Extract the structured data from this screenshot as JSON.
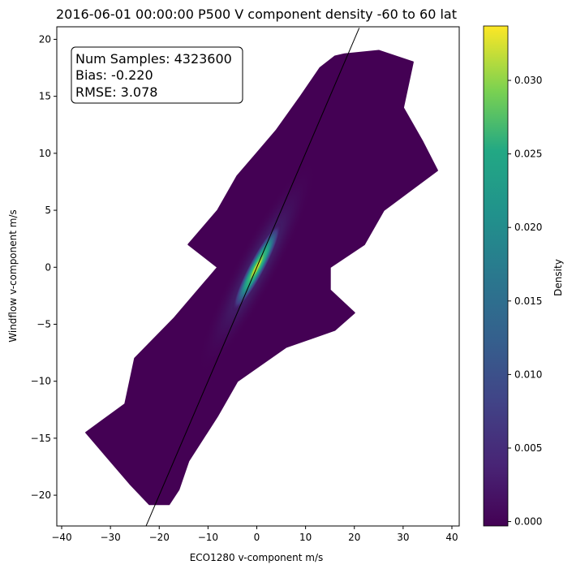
{
  "chart_data": {
    "type": "scatter",
    "title": "2016-06-01 00:00:00 P500 V component density -60 to 60 lat",
    "xlabel": "ECO1280 v-component m/s",
    "ylabel": "Windflow v-component m/s",
    "xlim": [
      -41,
      41.5
    ],
    "ylim": [
      -22.7,
      21.1
    ],
    "x_ticks": [
      -40,
      -30,
      -20,
      -10,
      0,
      10,
      20,
      30,
      40
    ],
    "y_ticks": [
      -20,
      -15,
      -10,
      -5,
      0,
      5,
      10,
      15,
      20
    ],
    "grid": false,
    "density_envelope": {
      "left": [
        [
          -22,
          -20.8
        ],
        [
          -26,
          -19
        ],
        [
          -35,
          -14.5
        ],
        [
          -27,
          -12
        ],
        [
          -25,
          -8
        ],
        [
          -17,
          -4.5
        ],
        [
          -12,
          -2
        ],
        [
          -8,
          0
        ],
        [
          -14,
          2
        ],
        [
          -8,
          5
        ],
        [
          -4,
          8
        ],
        [
          0,
          10
        ],
        [
          4,
          12
        ],
        [
          9,
          15
        ],
        [
          13,
          17.5
        ],
        [
          16,
          18.5
        ]
      ],
      "right": [
        [
          18,
          18.7
        ],
        [
          25,
          19
        ],
        [
          32,
          18
        ],
        [
          30,
          14
        ],
        [
          34,
          11
        ],
        [
          37,
          8.5
        ],
        [
          26,
          5
        ],
        [
          22,
          2
        ],
        [
          15,
          0
        ],
        [
          15,
          -2
        ],
        [
          20,
          -4
        ],
        [
          16,
          -5.5
        ],
        [
          6,
          -7
        ],
        [
          -4,
          -10
        ],
        [
          -8,
          -13
        ],
        [
          -14,
          -17
        ],
        [
          -16,
          -19.5
        ],
        [
          -18,
          -20.8
        ]
      ]
    },
    "hotspot_center": [
      0,
      0
    ],
    "reference_line": {
      "label": "y = x",
      "x": [
        -23,
        21
      ],
      "y": [
        -23,
        21
      ]
    },
    "colorbar": {
      "label": "Density",
      "colormap": "viridis",
      "range": [
        -0.0003,
        0.0337
      ],
      "ticks": [
        0.0,
        0.005,
        0.01,
        0.015,
        0.02,
        0.025,
        0.03
      ],
      "tick_labels": [
        "0.000",
        "0.005",
        "0.010",
        "0.015",
        "0.020",
        "0.025",
        "0.030"
      ]
    },
    "stats_box": {
      "lines": [
        "Num Samples: 4323600",
        "Bias: -0.220",
        "RMSE: 3.078"
      ],
      "location": "top-left"
    }
  }
}
